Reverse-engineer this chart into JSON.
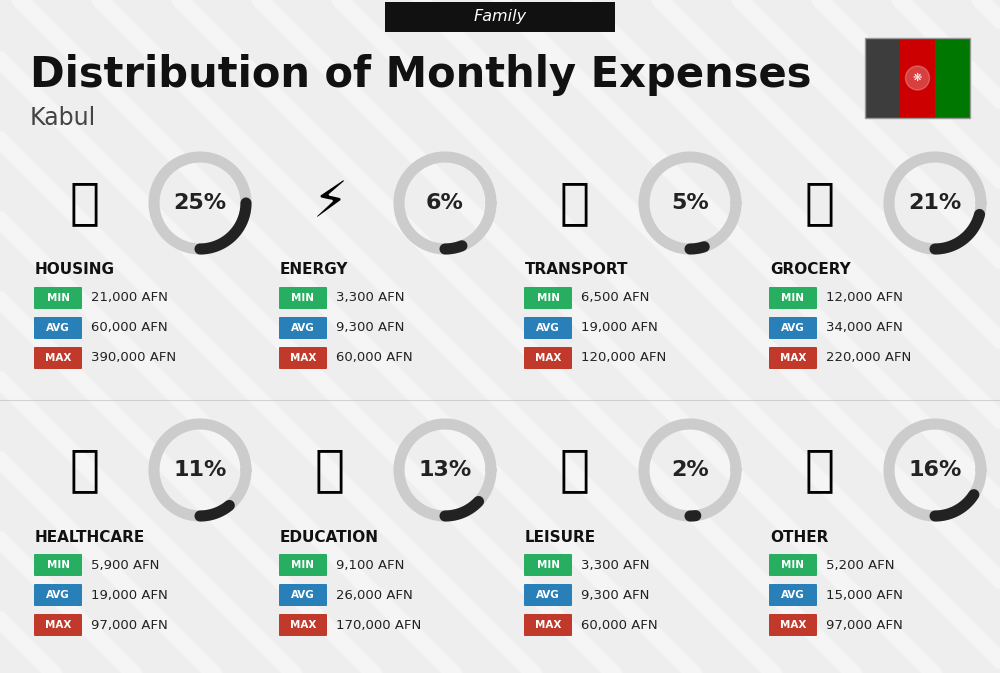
{
  "title": "Distribution of Monthly Expenses",
  "subtitle": "Family",
  "city": "Kabul",
  "background_color": "#eeeeee",
  "header_bg": "#111111",
  "header_text_color": "#ffffff",
  "title_color": "#111111",
  "city_color": "#444444",
  "categories": [
    {
      "name": "HOUSING",
      "pct": 25,
      "min": "21,000 AFN",
      "avg": "60,000 AFN",
      "max": "390,000 AFN",
      "row": 0,
      "col": 0
    },
    {
      "name": "ENERGY",
      "pct": 6,
      "min": "3,300 AFN",
      "avg": "9,300 AFN",
      "max": "60,000 AFN",
      "row": 0,
      "col": 1
    },
    {
      "name": "TRANSPORT",
      "pct": 5,
      "min": "6,500 AFN",
      "avg": "19,000 AFN",
      "max": "120,000 AFN",
      "row": 0,
      "col": 2
    },
    {
      "name": "GROCERY",
      "pct": 21,
      "min": "12,000 AFN",
      "avg": "34,000 AFN",
      "max": "220,000 AFN",
      "row": 0,
      "col": 3
    },
    {
      "name": "HEALTHCARE",
      "pct": 11,
      "min": "5,900 AFN",
      "avg": "19,000 AFN",
      "max": "97,000 AFN",
      "row": 1,
      "col": 0
    },
    {
      "name": "EDUCATION",
      "pct": 13,
      "min": "9,100 AFN",
      "avg": "26,000 AFN",
      "max": "170,000 AFN",
      "row": 1,
      "col": 1
    },
    {
      "name": "LEISURE",
      "pct": 2,
      "min": "3,300 AFN",
      "avg": "9,300 AFN",
      "max": "60,000 AFN",
      "row": 1,
      "col": 2
    },
    {
      "name": "OTHER",
      "pct": 16,
      "min": "5,200 AFN",
      "avg": "15,000 AFN",
      "max": "97,000 AFN",
      "row": 1,
      "col": 3
    }
  ],
  "min_color": "#27ae60",
  "avg_color": "#2980b9",
  "max_color": "#c0392b",
  "arc_filled_color": "#222222",
  "arc_bg_color": "#cccccc",
  "flag_colors": [
    "#3d3d3d",
    "#cc0000",
    "#007700"
  ],
  "stripe_color": "#ffffff",
  "stripe_alpha": 0.45,
  "stripe_lw": 12
}
